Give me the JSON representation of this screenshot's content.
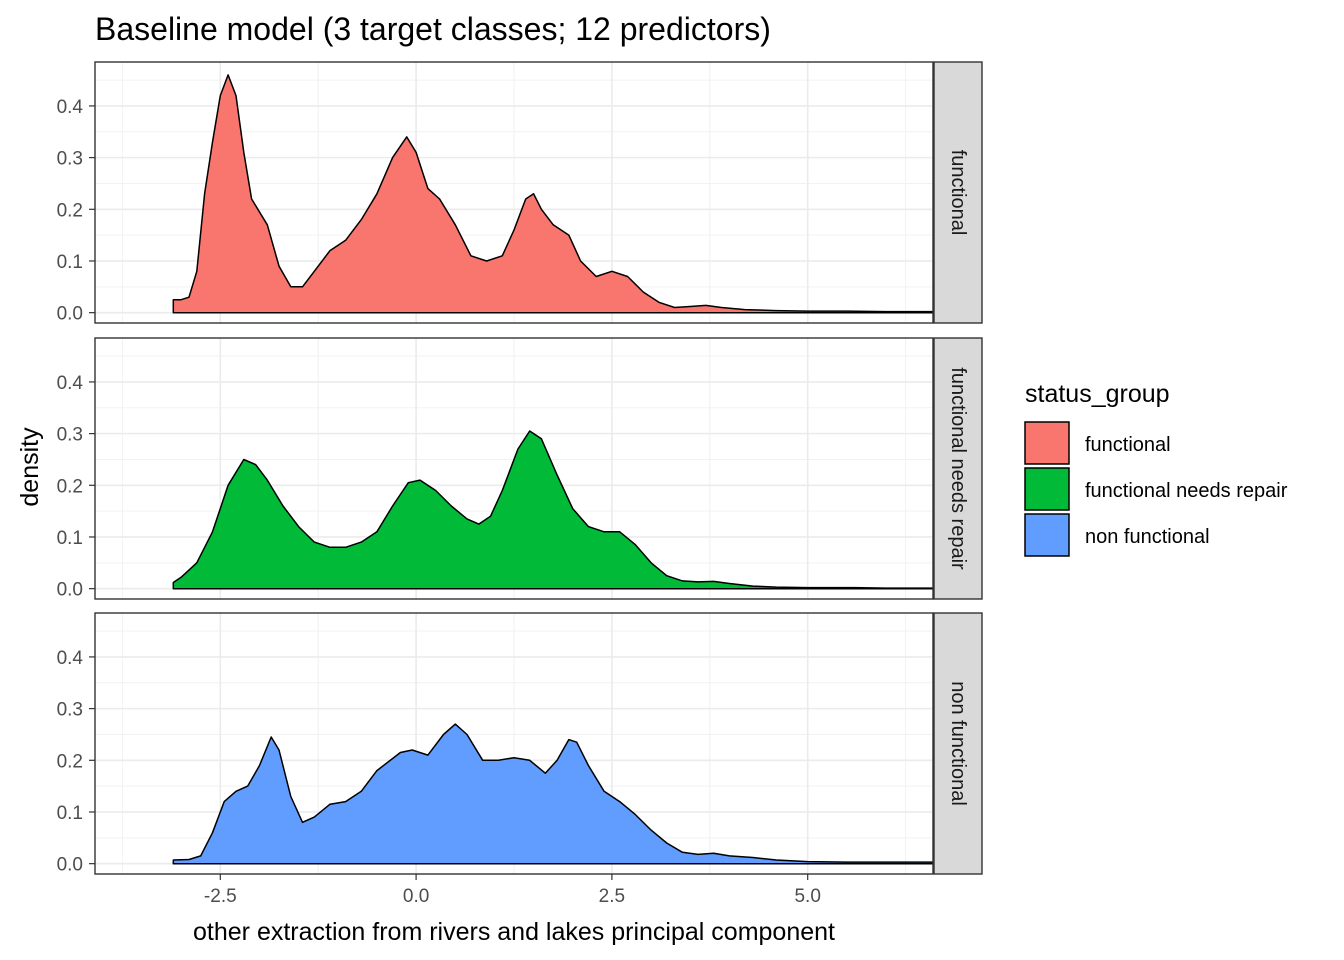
{
  "chart_data": {
    "type": "area",
    "title": "Baseline model (3 target classes; 12 predictors)",
    "xlabel": "other extraction from rivers and lakes principal component",
    "ylabel": "density",
    "xlim": [
      -4.1,
      6.6
    ],
    "ylim": [
      -0.02,
      0.485
    ],
    "x_ticks": [
      -2.5,
      0.0,
      2.5,
      5.0
    ],
    "x_tick_labels": [
      "-2.5",
      "0.0",
      "2.5",
      "5.0"
    ],
    "y_ticks": [
      0.0,
      0.1,
      0.2,
      0.3,
      0.4
    ],
    "y_tick_labels": [
      "0.0",
      "0.1",
      "0.2",
      "0.3",
      "0.4"
    ],
    "grid": true,
    "facet": "rows",
    "legend": {
      "title": "status_group",
      "placement": "right",
      "items": [
        {
          "label": "functional",
          "color": "#F8766D"
        },
        {
          "label": "functional needs repair",
          "color": "#00BA38"
        },
        {
          "label": "non functional",
          "color": "#619CFF"
        }
      ]
    },
    "series": [
      {
        "name": "functional",
        "color": "#F8766D",
        "points": [
          [
            -3.1,
            0.025
          ],
          [
            -3.0,
            0.025
          ],
          [
            -2.9,
            0.03
          ],
          [
            -2.8,
            0.08
          ],
          [
            -2.7,
            0.23
          ],
          [
            -2.6,
            0.33
          ],
          [
            -2.5,
            0.42
          ],
          [
            -2.4,
            0.46
          ],
          [
            -2.3,
            0.42
          ],
          [
            -2.2,
            0.31
          ],
          [
            -2.1,
            0.22
          ],
          [
            -1.9,
            0.17
          ],
          [
            -1.75,
            0.09
          ],
          [
            -1.6,
            0.05
          ],
          [
            -1.45,
            0.05
          ],
          [
            -1.3,
            0.08
          ],
          [
            -1.1,
            0.12
          ],
          [
            -0.9,
            0.14
          ],
          [
            -0.7,
            0.18
          ],
          [
            -0.5,
            0.23
          ],
          [
            -0.3,
            0.3
          ],
          [
            -0.12,
            0.34
          ],
          [
            0.0,
            0.31
          ],
          [
            0.15,
            0.24
          ],
          [
            0.3,
            0.22
          ],
          [
            0.5,
            0.17
          ],
          [
            0.7,
            0.11
          ],
          [
            0.9,
            0.1
          ],
          [
            1.1,
            0.11
          ],
          [
            1.25,
            0.16
          ],
          [
            1.4,
            0.22
          ],
          [
            1.5,
            0.23
          ],
          [
            1.6,
            0.2
          ],
          [
            1.75,
            0.17
          ],
          [
            1.95,
            0.15
          ],
          [
            2.1,
            0.1
          ],
          [
            2.3,
            0.07
          ],
          [
            2.5,
            0.08
          ],
          [
            2.7,
            0.07
          ],
          [
            2.9,
            0.04
          ],
          [
            3.1,
            0.02
          ],
          [
            3.3,
            0.01
          ],
          [
            3.5,
            0.012
          ],
          [
            3.7,
            0.014
          ],
          [
            3.9,
            0.01
          ],
          [
            4.2,
            0.006
          ],
          [
            4.6,
            0.004
          ],
          [
            5.0,
            0.003
          ],
          [
            5.5,
            0.003
          ],
          [
            6.0,
            0.002
          ],
          [
            6.6,
            0.002
          ]
        ]
      },
      {
        "name": "functional needs repair",
        "color": "#00BA38",
        "points": [
          [
            -3.1,
            0.012
          ],
          [
            -3.0,
            0.022
          ],
          [
            -2.8,
            0.05
          ],
          [
            -2.6,
            0.11
          ],
          [
            -2.4,
            0.2
          ],
          [
            -2.2,
            0.25
          ],
          [
            -2.05,
            0.24
          ],
          [
            -1.9,
            0.21
          ],
          [
            -1.7,
            0.16
          ],
          [
            -1.5,
            0.12
          ],
          [
            -1.3,
            0.09
          ],
          [
            -1.1,
            0.08
          ],
          [
            -0.9,
            0.08
          ],
          [
            -0.7,
            0.09
          ],
          [
            -0.5,
            0.11
          ],
          [
            -0.3,
            0.16
          ],
          [
            -0.1,
            0.205
          ],
          [
            0.05,
            0.21
          ],
          [
            0.25,
            0.19
          ],
          [
            0.45,
            0.16
          ],
          [
            0.65,
            0.135
          ],
          [
            0.8,
            0.125
          ],
          [
            0.95,
            0.14
          ],
          [
            1.1,
            0.19
          ],
          [
            1.3,
            0.27
          ],
          [
            1.45,
            0.305
          ],
          [
            1.6,
            0.29
          ],
          [
            1.8,
            0.22
          ],
          [
            2.0,
            0.155
          ],
          [
            2.2,
            0.12
          ],
          [
            2.4,
            0.11
          ],
          [
            2.6,
            0.11
          ],
          [
            2.8,
            0.085
          ],
          [
            3.0,
            0.05
          ],
          [
            3.2,
            0.025
          ],
          [
            3.4,
            0.015
          ],
          [
            3.6,
            0.013
          ],
          [
            3.8,
            0.014
          ],
          [
            4.0,
            0.01
          ],
          [
            4.3,
            0.005
          ],
          [
            4.6,
            0.003
          ],
          [
            5.0,
            0.002
          ],
          [
            5.6,
            0.002
          ],
          [
            6.0,
            0.001
          ],
          [
            6.6,
            0.001
          ]
        ]
      },
      {
        "name": "non functional",
        "color": "#619CFF",
        "points": [
          [
            -3.1,
            0.007
          ],
          [
            -2.9,
            0.008
          ],
          [
            -2.75,
            0.015
          ],
          [
            -2.6,
            0.06
          ],
          [
            -2.45,
            0.12
          ],
          [
            -2.3,
            0.14
          ],
          [
            -2.15,
            0.15
          ],
          [
            -2.0,
            0.19
          ],
          [
            -1.85,
            0.245
          ],
          [
            -1.75,
            0.22
          ],
          [
            -1.6,
            0.13
          ],
          [
            -1.45,
            0.08
          ],
          [
            -1.3,
            0.09
          ],
          [
            -1.1,
            0.115
          ],
          [
            -0.9,
            0.12
          ],
          [
            -0.7,
            0.14
          ],
          [
            -0.5,
            0.18
          ],
          [
            -0.2,
            0.215
          ],
          [
            -0.05,
            0.22
          ],
          [
            0.15,
            0.21
          ],
          [
            0.35,
            0.25
          ],
          [
            0.5,
            0.27
          ],
          [
            0.65,
            0.25
          ],
          [
            0.85,
            0.2
          ],
          [
            1.05,
            0.2
          ],
          [
            1.25,
            0.205
          ],
          [
            1.45,
            0.2
          ],
          [
            1.65,
            0.175
          ],
          [
            1.8,
            0.2
          ],
          [
            1.95,
            0.24
          ],
          [
            2.05,
            0.235
          ],
          [
            2.2,
            0.19
          ],
          [
            2.4,
            0.14
          ],
          [
            2.6,
            0.12
          ],
          [
            2.8,
            0.095
          ],
          [
            3.0,
            0.065
          ],
          [
            3.2,
            0.04
          ],
          [
            3.4,
            0.022
          ],
          [
            3.6,
            0.018
          ],
          [
            3.8,
            0.02
          ],
          [
            4.0,
            0.015
          ],
          [
            4.3,
            0.012
          ],
          [
            4.6,
            0.007
          ],
          [
            5.0,
            0.004
          ],
          [
            5.5,
            0.003
          ],
          [
            6.0,
            0.003
          ],
          [
            6.6,
            0.003
          ]
        ]
      }
    ]
  }
}
